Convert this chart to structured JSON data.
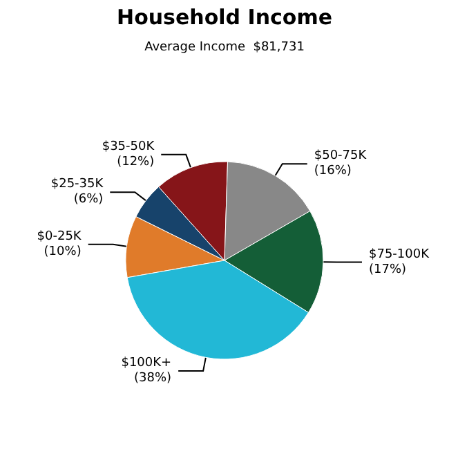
{
  "chart_data": {
    "type": "pie",
    "title": "Household Income",
    "subtitle": "Average Income  $81,731",
    "categories": [
      "$0-25K",
      "$25-35K",
      "$35-50K",
      "$50-75K",
      "$75-100K",
      "$100K+"
    ],
    "values": [
      10,
      6,
      12,
      16,
      17,
      38
    ],
    "value_labels": [
      "(10%)",
      "(6%)",
      "(12%)",
      "(16%)",
      "(17%)",
      "(38%)"
    ],
    "colors": [
      "#e07b2a",
      "#17436b",
      "#861519",
      "#888888",
      "#145e37",
      "#22b8d6"
    ],
    "legend": false
  }
}
